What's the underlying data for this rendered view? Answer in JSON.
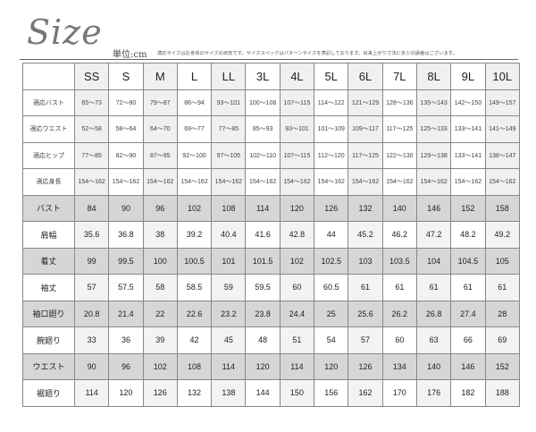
{
  "header": {
    "title": "Size",
    "unit": "単位:cm",
    "note": "適応サイズはお身体のサイズの目安です。サイズスペックはパターンサイズを表記しております。出来上がり寸法に多少の誤差はございます。"
  },
  "table": {
    "sizes": [
      "SS",
      "S",
      "M",
      "L",
      "LL",
      "3L",
      "4L",
      "5L",
      "6L",
      "7L",
      "8L",
      "9L",
      "10L"
    ],
    "fit_rows": [
      {
        "label": "適応バスト",
        "values": [
          "65〜73",
          "72〜80",
          "79〜87",
          "86〜94",
          "93〜101",
          "100〜108",
          "107〜115",
          "114〜122",
          "121〜129",
          "128〜136",
          "135〜143",
          "142〜150",
          "149〜157"
        ]
      },
      {
        "label": "適応ウエスト",
        "values": [
          "52〜58",
          "58〜64",
          "64〜70",
          "69〜77",
          "77〜85",
          "85〜93",
          "93〜101",
          "101〜109",
          "109〜117",
          "117〜125",
          "125〜133",
          "133〜141",
          "141〜149"
        ]
      },
      {
        "label": "適応ヒップ",
        "values": [
          "77〜85",
          "82〜90",
          "87〜95",
          "92〜100",
          "97〜105",
          "102〜110",
          "107〜115",
          "112〜120",
          "117〜125",
          "122〜130",
          "129〜138",
          "133〜141",
          "138〜147"
        ]
      },
      {
        "label": "適応身長",
        "values": [
          "154〜162",
          "154〜162",
          "154〜162",
          "154〜162",
          "154〜162",
          "154〜162",
          "154〜162",
          "154〜162",
          "154〜162",
          "154〜162",
          "154〜162",
          "154〜162",
          "154〜162"
        ]
      }
    ],
    "measure_rows": [
      {
        "label": "バスト",
        "values": [
          "84",
          "90",
          "96",
          "102",
          "108",
          "114",
          "120",
          "126",
          "132",
          "140",
          "146",
          "152",
          "158"
        ]
      },
      {
        "label": "肩幅",
        "values": [
          "35.6",
          "36.8",
          "38",
          "39.2",
          "40.4",
          "41.6",
          "42.8",
          "44",
          "45.2",
          "46.2",
          "47.2",
          "48.2",
          "49.2"
        ]
      },
      {
        "label": "着丈",
        "values": [
          "99",
          "99.5",
          "100",
          "100.5",
          "101",
          "101.5",
          "102",
          "102.5",
          "103",
          "103.5",
          "104",
          "104.5",
          "105"
        ]
      },
      {
        "label": "袖丈",
        "values": [
          "57",
          "57.5",
          "58",
          "58.5",
          "59",
          "59.5",
          "60",
          "60.5",
          "61",
          "61",
          "61",
          "61",
          "61"
        ]
      },
      {
        "label": "袖口廻り",
        "values": [
          "20.8",
          "21.4",
          "22",
          "22.6",
          "23.2",
          "23.8",
          "24.4",
          "25",
          "25.6",
          "26.2",
          "26.8",
          "27.4",
          "28"
        ]
      },
      {
        "label": "腕廻り",
        "values": [
          "33",
          "36",
          "39",
          "42",
          "45",
          "48",
          "51",
          "54",
          "57",
          "60",
          "63",
          "66",
          "69"
        ]
      },
      {
        "label": "ウエスト",
        "values": [
          "90",
          "96",
          "102",
          "108",
          "114",
          "120",
          "114",
          "120",
          "126",
          "134",
          "140",
          "146",
          "152"
        ]
      },
      {
        "label": "裾廻り",
        "values": [
          "114",
          "120",
          "126",
          "132",
          "138",
          "144",
          "150",
          "156",
          "162",
          "170",
          "176",
          "182",
          "188"
        ]
      }
    ]
  }
}
